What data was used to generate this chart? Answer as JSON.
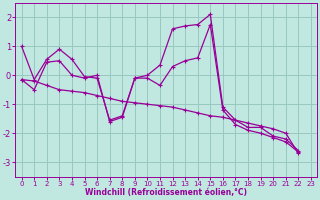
{
  "xlabel": "Windchill (Refroidissement éolien,°C)",
  "xlim": [
    -0.5,
    23.5
  ],
  "ylim": [
    -3.5,
    2.5
  ],
  "yticks": [
    -3,
    -2,
    -1,
    0,
    1,
    2
  ],
  "xticks": [
    0,
    1,
    2,
    3,
    4,
    5,
    6,
    7,
    8,
    9,
    10,
    11,
    12,
    13,
    14,
    15,
    16,
    17,
    18,
    19,
    20,
    21,
    22,
    23
  ],
  "bg_color": "#c0e8e0",
  "grid_color": "#98c8c0",
  "line_color": "#990099",
  "line1_y": [
    1.0,
    -0.15,
    0.55,
    0.9,
    0.55,
    -0.05,
    -0.1,
    -1.55,
    -1.4,
    -0.1,
    0.0,
    0.35,
    1.6,
    1.7,
    1.75,
    2.1,
    -1.1,
    -1.55,
    -1.8,
    -1.8,
    -2.1,
    -2.2,
    -2.6
  ],
  "line2_y": [
    -0.15,
    -0.2,
    -0.35,
    -0.5,
    -0.55,
    -0.6,
    -0.7,
    -0.8,
    -0.9,
    -0.95,
    -1.0,
    -1.05,
    -1.1,
    -1.2,
    -1.3,
    -1.4,
    -1.45,
    -1.55,
    -1.65,
    -1.75,
    -1.85,
    -2.0,
    -2.7
  ],
  "line3_y": [
    -0.15,
    -0.5,
    0.45,
    0.5,
    0.0,
    -0.1,
    0.0,
    -1.6,
    -1.45,
    -0.1,
    -0.1,
    -0.35,
    0.3,
    0.5,
    0.6,
    1.75,
    -1.2,
    -1.7,
    -1.9,
    -2.0,
    -2.15,
    -2.3,
    -2.65
  ],
  "tick_fontsize": 5.5,
  "label_fontsize": 5.5
}
